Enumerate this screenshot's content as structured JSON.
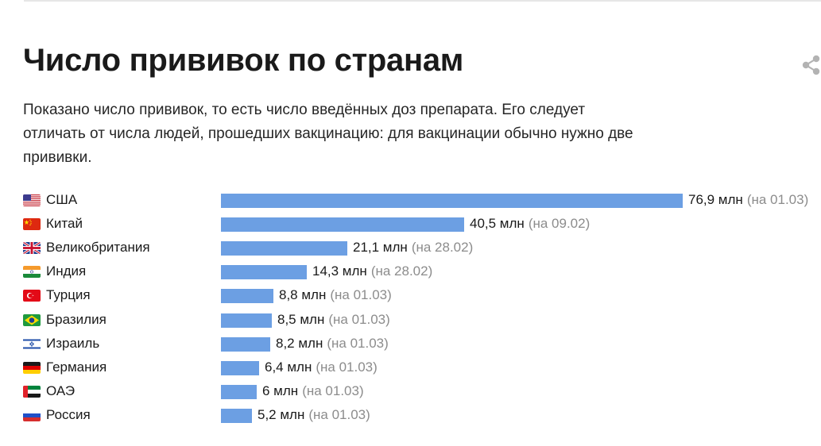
{
  "header": {
    "title": "Число прививок по странам",
    "description": "Показано число прививок, то есть число введённых доз препарата. Его следует отличать от числа людей, прошедших вакцинацию: для вакцинации обычно нужно две прививки.",
    "share_icon": "share-icon"
  },
  "chart_data": {
    "type": "bar",
    "orientation": "horizontal",
    "categories": [
      "США",
      "Китай",
      "Великобритания",
      "Индия",
      "Турция",
      "Бразилия",
      "Израиль",
      "Германия",
      "ОАЭ",
      "Россия"
    ],
    "values": [
      76.9,
      40.5,
      21.1,
      14.3,
      8.8,
      8.5,
      8.2,
      6.4,
      6,
      5.2
    ],
    "value_labels": [
      "76,9 млн",
      "40,5 млн",
      "21,1 млн",
      "14,3 млн",
      "8,8 млн",
      "8,5 млн",
      "8,2 млн",
      "6,4 млн",
      "6 млн",
      "5,2 млн"
    ],
    "date_labels": [
      "(на 01.03)",
      "(на 09.02)",
      "(на 28.02)",
      "(на 28.02)",
      "(на 01.03)",
      "(на 01.03)",
      "(на 01.03)",
      "(на 01.03)",
      "(на 01.03)",
      "(на 01.03)"
    ],
    "flags": [
      "us-flag-icon",
      "cn-flag-icon",
      "gb-flag-icon",
      "in-flag-icon",
      "tr-flag-icon",
      "br-flag-icon",
      "il-flag-icon",
      "de-flag-icon",
      "ae-flag-icon",
      "ru-flag-icon"
    ],
    "bar_color": "#6c9fe3",
    "unit": "млн",
    "xlim": [
      0,
      76.9
    ]
  }
}
